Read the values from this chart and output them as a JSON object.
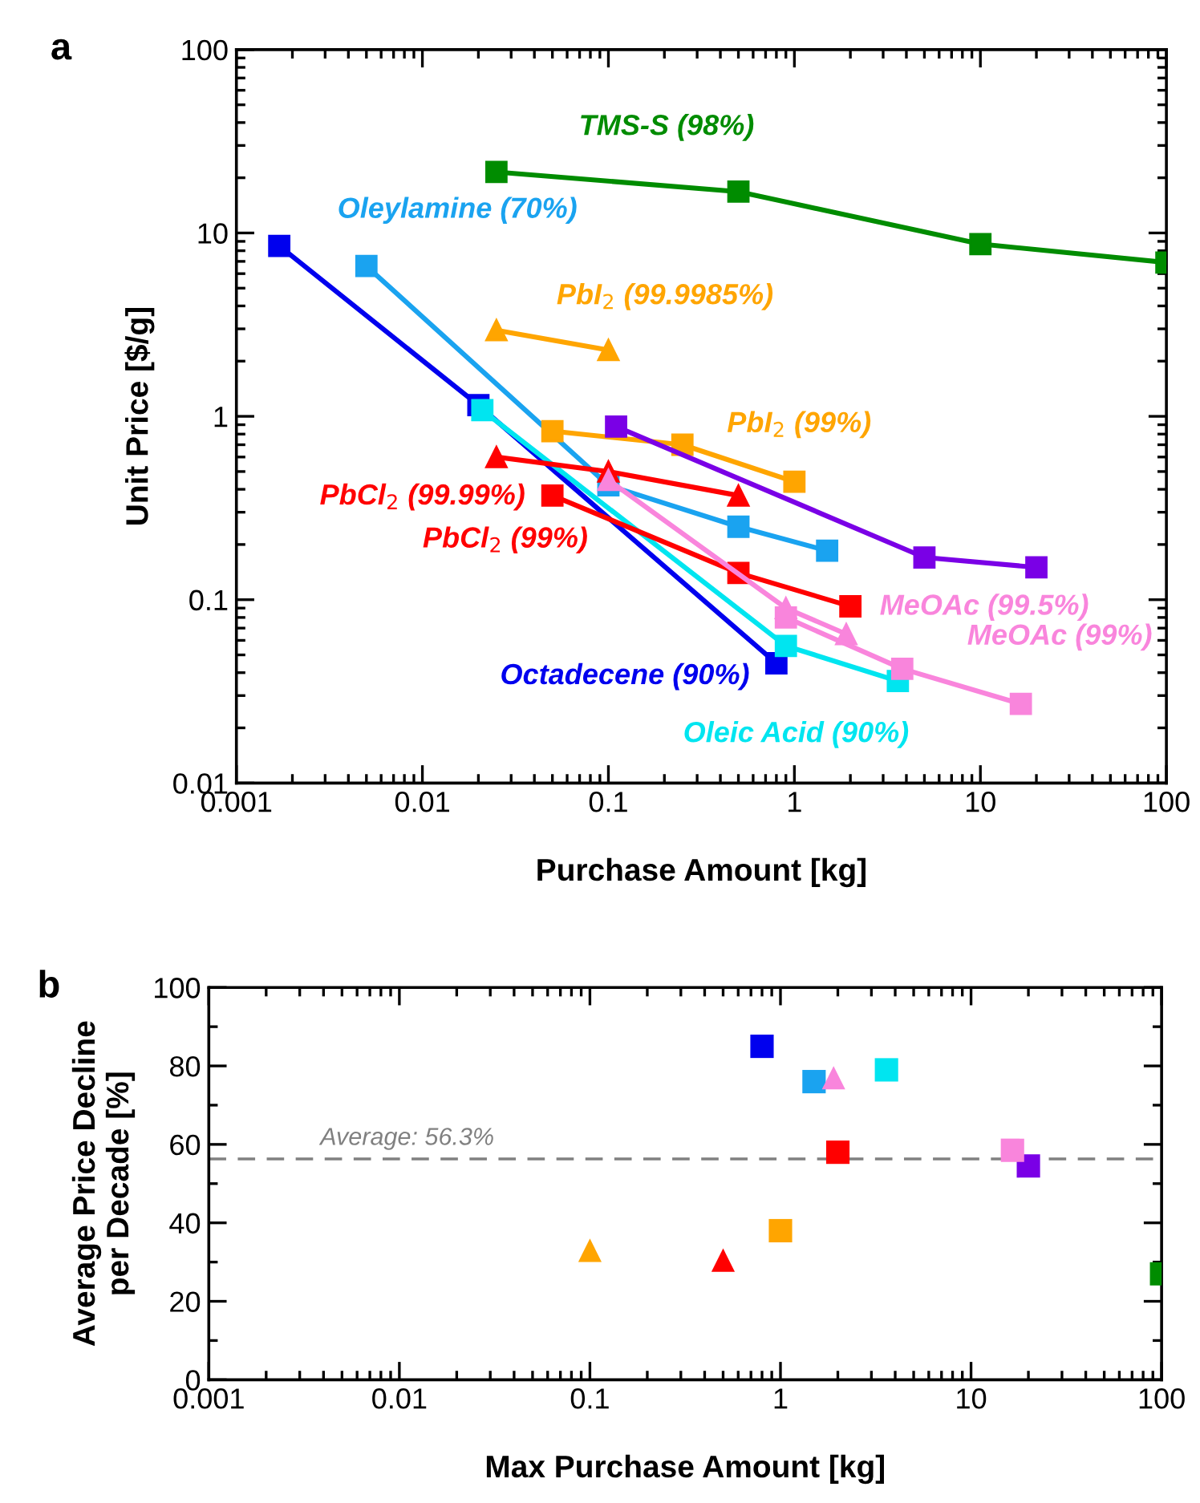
{
  "chart_data": [
    {
      "type": "line",
      "xlabel": "Purchase Amount [kg]",
      "ylabel": "Unit Price [$/g]",
      "log": "xy",
      "xlim": [
        0.001,
        100
      ],
      "ylim": [
        0.01,
        100
      ],
      "xticks": [
        0.001,
        0.01,
        0.1,
        1,
        10,
        100
      ],
      "yticks": [
        0.01,
        0.1,
        1,
        10,
        100
      ],
      "grid": false,
      "legend": false,
      "annotations": [
        "a"
      ],
      "series": [
        {
          "name": "Octadecene (90%)",
          "color": "#0000ee",
          "marker": "square",
          "x": [
            0.0017,
            0.02,
            0.8
          ],
          "values": [
            8.5,
            1.15,
            0.045
          ]
        },
        {
          "name": "Oleylamine (70%)",
          "color": "#1aa3f0",
          "marker": "square",
          "x": [
            0.005,
            0.1,
            0.5,
            1.5
          ],
          "values": [
            6.6,
            0.42,
            0.25,
            0.185
          ]
        },
        {
          "name": "Oleic Acid (90%)",
          "color": "#00e5f0",
          "marker": "square",
          "x": [
            0.021,
            0.9,
            3.6
          ],
          "values": [
            1.08,
            0.056,
            0.036
          ]
        },
        {
          "name": "TMS-S (98%)",
          "color": "#008c00",
          "marker": "square",
          "x": [
            0.025,
            0.5,
            10,
            100
          ],
          "values": [
            21.5,
            16.8,
            8.7,
            6.9
          ]
        },
        {
          "name": "PbI$_{2}$ (99.9985%)",
          "color": "#ffa500",
          "marker": "triangle",
          "x": [
            0.025,
            0.1
          ],
          "values": [
            2.95,
            2.3
          ]
        },
        {
          "name": "PbI$_{2}$ (99%)",
          "color": "#ffa500",
          "marker": "square",
          "x": [
            0.05,
            0.25,
            1
          ],
          "values": [
            0.83,
            0.7,
            0.44
          ]
        },
        {
          "name": "PbCl$_{2}$ (99.99%)",
          "color": "#ff0000",
          "marker": "triangle",
          "x": [
            0.025,
            0.1,
            0.5
          ],
          "values": [
            0.6,
            0.5,
            0.37
          ]
        },
        {
          "name": "PbCl$_{2}$ (99%)",
          "color": "#ff0000",
          "marker": "square",
          "x": [
            0.05,
            0.5,
            2
          ],
          "values": [
            0.37,
            0.14,
            0.092
          ]
        },
        {
          "color": "#7a00e6",
          "marker": "square",
          "x": [
            0.11,
            5,
            20
          ],
          "values": [
            0.88,
            0.17,
            0.15
          ]
        },
        {
          "name": "MeOAc (99.5%)",
          "color": "#f985dc",
          "marker": "triangle",
          "x": [
            0.1,
            0.9,
            1.9
          ],
          "values": [
            0.45,
            0.09,
            0.065
          ]
        },
        {
          "name": "MeOAc (99%)",
          "color": "#f985dc",
          "marker": "square",
          "x": [
            0.9,
            3.8,
            16.5
          ],
          "values": [
            0.08,
            0.042,
            0.027
          ]
        }
      ]
    },
    {
      "type": "scatter",
      "xlabel": "Max Purchase Amount [kg]",
      "ylabel": "Average Price Decline\nper Decade [%]",
      "log": "x",
      "xlim": [
        0.001,
        100
      ],
      "ylim": [
        0,
        100
      ],
      "xticks": [
        0.001,
        0.01,
        0.1,
        1,
        10,
        100
      ],
      "yticks": [
        0,
        20,
        40,
        60,
        80,
        100
      ],
      "grid": false,
      "legend": false,
      "annotations": [
        "b"
      ],
      "ref_lines": [
        {
          "axis": "y",
          "value": 56.3,
          "label": "Average: 56.3%",
          "color": "#808080",
          "line_style": "dashed"
        }
      ],
      "series": [
        {
          "color": "#0000ee",
          "marker": "square",
          "x": [
            0.8
          ],
          "values": [
            85
          ]
        },
        {
          "color": "#1aa3f0",
          "marker": "square",
          "x": [
            1.5
          ],
          "values": [
            76
          ]
        },
        {
          "color": "#00e5f0",
          "marker": "square",
          "x": [
            3.6
          ],
          "values": [
            79
          ]
        },
        {
          "color": "#008c00",
          "marker": "square",
          "x": [
            100
          ],
          "values": [
            27
          ]
        },
        {
          "color": "#ffa500",
          "marker": "triangle",
          "x": [
            0.1
          ],
          "values": [
            33
          ]
        },
        {
          "color": "#ffa500",
          "marker": "square",
          "x": [
            1
          ],
          "values": [
            38
          ]
        },
        {
          "color": "#ff0000",
          "marker": "triangle",
          "x": [
            0.5
          ],
          "values": [
            30.5
          ]
        },
        {
          "color": "#ff0000",
          "marker": "square",
          "x": [
            2
          ],
          "values": [
            58
          ]
        },
        {
          "color": "#7a00e6",
          "marker": "square",
          "x": [
            20
          ],
          "values": [
            54.5
          ]
        },
        {
          "color": "#f985dc",
          "marker": "triangle",
          "x": [
            1.9
          ],
          "values": [
            77
          ]
        },
        {
          "color": "#f985dc",
          "marker": "square",
          "x": [
            16.5
          ],
          "values": [
            58.5
          ]
        }
      ]
    }
  ]
}
